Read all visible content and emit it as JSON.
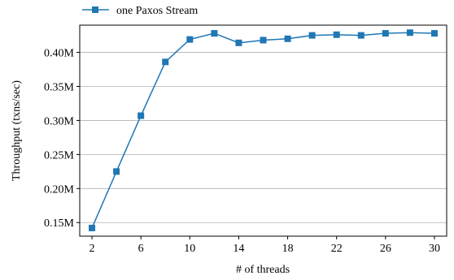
{
  "colors": {
    "series": "#1f77b4",
    "grid": "#b0b0b0",
    "axis": "#000000"
  },
  "chart_data": {
    "type": "line",
    "title": "",
    "xlabel": "# of threads",
    "ylabel": "Throughput (txns/sec)",
    "xlim": [
      1,
      31
    ],
    "ylim": [
      0.13,
      0.44
    ],
    "xticks": [
      2,
      6,
      10,
      14,
      18,
      22,
      26,
      30
    ],
    "xtick_labels": [
      "2",
      "6",
      "10",
      "14",
      "18",
      "22",
      "26",
      "30"
    ],
    "yticks": [
      0.15,
      0.2,
      0.25,
      0.3,
      0.35,
      0.4
    ],
    "ytick_labels": [
      "0.15M",
      "0.20M",
      "0.25M",
      "0.30M",
      "0.35M",
      "0.40M"
    ],
    "grid": "horizontal",
    "legend_position": "top-left, above plot",
    "series": [
      {
        "name": "one Paxos Stream",
        "marker": "square",
        "x": [
          2,
          4,
          6,
          8,
          10,
          12,
          14,
          16,
          18,
          20,
          22,
          24,
          26,
          28,
          30
        ],
        "values": [
          0.142,
          0.225,
          0.307,
          0.386,
          0.419,
          0.428,
          0.414,
          0.418,
          0.42,
          0.425,
          0.426,
          0.425,
          0.428,
          0.429,
          0.428
        ]
      }
    ]
  }
}
